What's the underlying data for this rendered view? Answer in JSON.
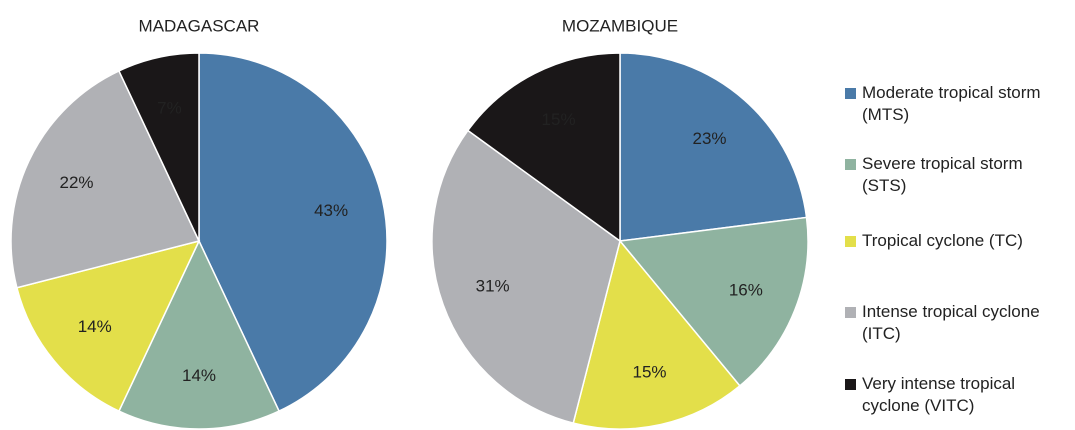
{
  "chart_data": [
    {
      "type": "pie",
      "title": "MADAGASCAR",
      "values": [
        43,
        14,
        14,
        22,
        7
      ],
      "value_labels": [
        "43%",
        "14%",
        "14%",
        "22%",
        "7%"
      ]
    },
    {
      "type": "pie",
      "title": "MOZAMBIQUE",
      "values": [
        23,
        16,
        15,
        31,
        15
      ],
      "value_labels": [
        "23%",
        "16%",
        "15%",
        "31%",
        "15%"
      ]
    }
  ],
  "legend": {
    "categories": [
      "Moderate tropical storm (MTS)",
      "Severe tropical storm (STS)",
      "Tropical cyclone (TC)",
      "Intense tropical cyclone (ITC)",
      "Very intense tropical cyclone (VITC)"
    ],
    "colors": [
      "#4a7aa8",
      "#8fb3a0",
      "#e3df4a",
      "#b0b1b5",
      "#1a1718"
    ]
  }
}
